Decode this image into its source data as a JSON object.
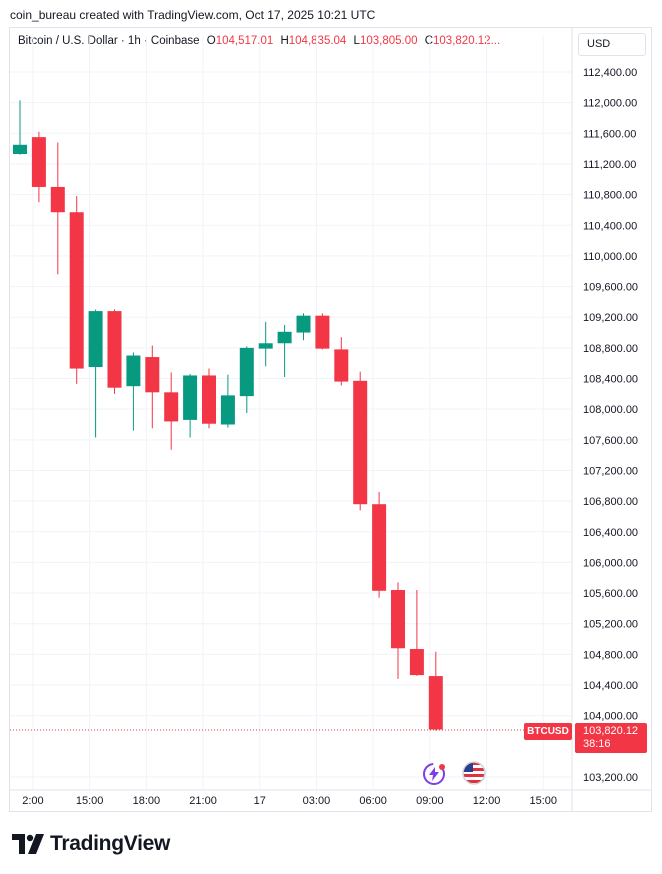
{
  "header": {
    "credit": "coin_bureau created with TradingView.com, Oct 17, 2025 10:21 UTC"
  },
  "legend": {
    "symbol": "Bitcoin / U.S. Dollar · 1h · Coinbase",
    "open_label": "O",
    "open": "104,517.01",
    "high_label": "H",
    "high": "104,835.04",
    "low_label": "L",
    "low": "103,805.00",
    "close_label": "C",
    "close": "103,820.12..."
  },
  "currency_button": "USD",
  "last_price": {
    "ticker": "BTCUSD",
    "price": "103,820.12",
    "countdown": "38:16"
  },
  "branding": {
    "name": "TradingView"
  },
  "colors": {
    "up": "#089981",
    "down": "#f23645",
    "grid": "#f0f3fa",
    "text": "#131722"
  },
  "icons": [
    "lightning-bolt-icon",
    "us-flag-icon",
    "tradingview-logo-icon"
  ],
  "chart_data": {
    "type": "candlestick",
    "interval": "1h",
    "ylim": [
      103100,
      112600
    ],
    "y_ticks": [
      103200,
      104000,
      104400,
      104800,
      105200,
      105600,
      106000,
      106400,
      106800,
      107200,
      107600,
      108000,
      108400,
      108800,
      109200,
      109600,
      110000,
      110400,
      110800,
      111200,
      111600,
      112000,
      112400
    ],
    "y_tick_labels": [
      "103,200.00",
      "104,000.00",
      "104,400.00",
      "104,800.00",
      "105,200.00",
      "105,600.00",
      "106,000.00",
      "106,400.00",
      "106,800.00",
      "107,200.00",
      "107,600.00",
      "108,000.00",
      "108,400.00",
      "108,800.00",
      "109,200.00",
      "109,600.00",
      "110,000.00",
      "110,400.00",
      "110,800.00",
      "111,200.00",
      "111,600.00",
      "112,000.00",
      "112,400.00"
    ],
    "x_tick_labels": [
      "2:00",
      "15:00",
      "18:00",
      "21:00",
      "17",
      "03:00",
      "06:00",
      "09:00",
      "12:00",
      "15:00"
    ],
    "x_tick_slots": [
      0.5,
      3.5,
      6.5,
      9.5,
      12.5,
      15.5,
      18.5,
      21.5,
      24.5,
      27.5
    ],
    "last_price": 103820.12,
    "candles": [
      {
        "o": 111330,
        "h": 112030,
        "l": 111320,
        "c": 111450
      },
      {
        "o": 111550,
        "h": 111620,
        "l": 110700,
        "c": 110900
      },
      {
        "o": 110900,
        "h": 111480,
        "l": 109760,
        "c": 110570
      },
      {
        "o": 110570,
        "h": 110780,
        "l": 108330,
        "c": 108530
      },
      {
        "o": 108550,
        "h": 109300,
        "l": 107630,
        "c": 109280
      },
      {
        "o": 109280,
        "h": 109300,
        "l": 108200,
        "c": 108280
      },
      {
        "o": 108300,
        "h": 108740,
        "l": 107720,
        "c": 108700
      },
      {
        "o": 108680,
        "h": 108830,
        "l": 107750,
        "c": 108220
      },
      {
        "o": 108220,
        "h": 108480,
        "l": 107470,
        "c": 107840
      },
      {
        "o": 107860,
        "h": 108460,
        "l": 107630,
        "c": 108440
      },
      {
        "o": 108440,
        "h": 108530,
        "l": 107750,
        "c": 107810
      },
      {
        "o": 107800,
        "h": 108450,
        "l": 107760,
        "c": 108180
      },
      {
        "o": 108170,
        "h": 108820,
        "l": 107950,
        "c": 108800
      },
      {
        "o": 108790,
        "h": 109140,
        "l": 108560,
        "c": 108860
      },
      {
        "o": 108860,
        "h": 109100,
        "l": 108420,
        "c": 109010
      },
      {
        "o": 109000,
        "h": 109250,
        "l": 108900,
        "c": 109220
      },
      {
        "o": 109220,
        "h": 109250,
        "l": 108780,
        "c": 108790
      },
      {
        "o": 108780,
        "h": 108940,
        "l": 108310,
        "c": 108360
      },
      {
        "o": 108370,
        "h": 108490,
        "l": 106680,
        "c": 106760
      },
      {
        "o": 106760,
        "h": 106920,
        "l": 105540,
        "c": 105630
      },
      {
        "o": 105640,
        "h": 105740,
        "l": 104480,
        "c": 104880
      },
      {
        "o": 104870,
        "h": 105640,
        "l": 104520,
        "c": 104530
      },
      {
        "o": 104517.01,
        "h": 104835.04,
        "l": 103805.0,
        "c": 103820.12
      }
    ]
  }
}
